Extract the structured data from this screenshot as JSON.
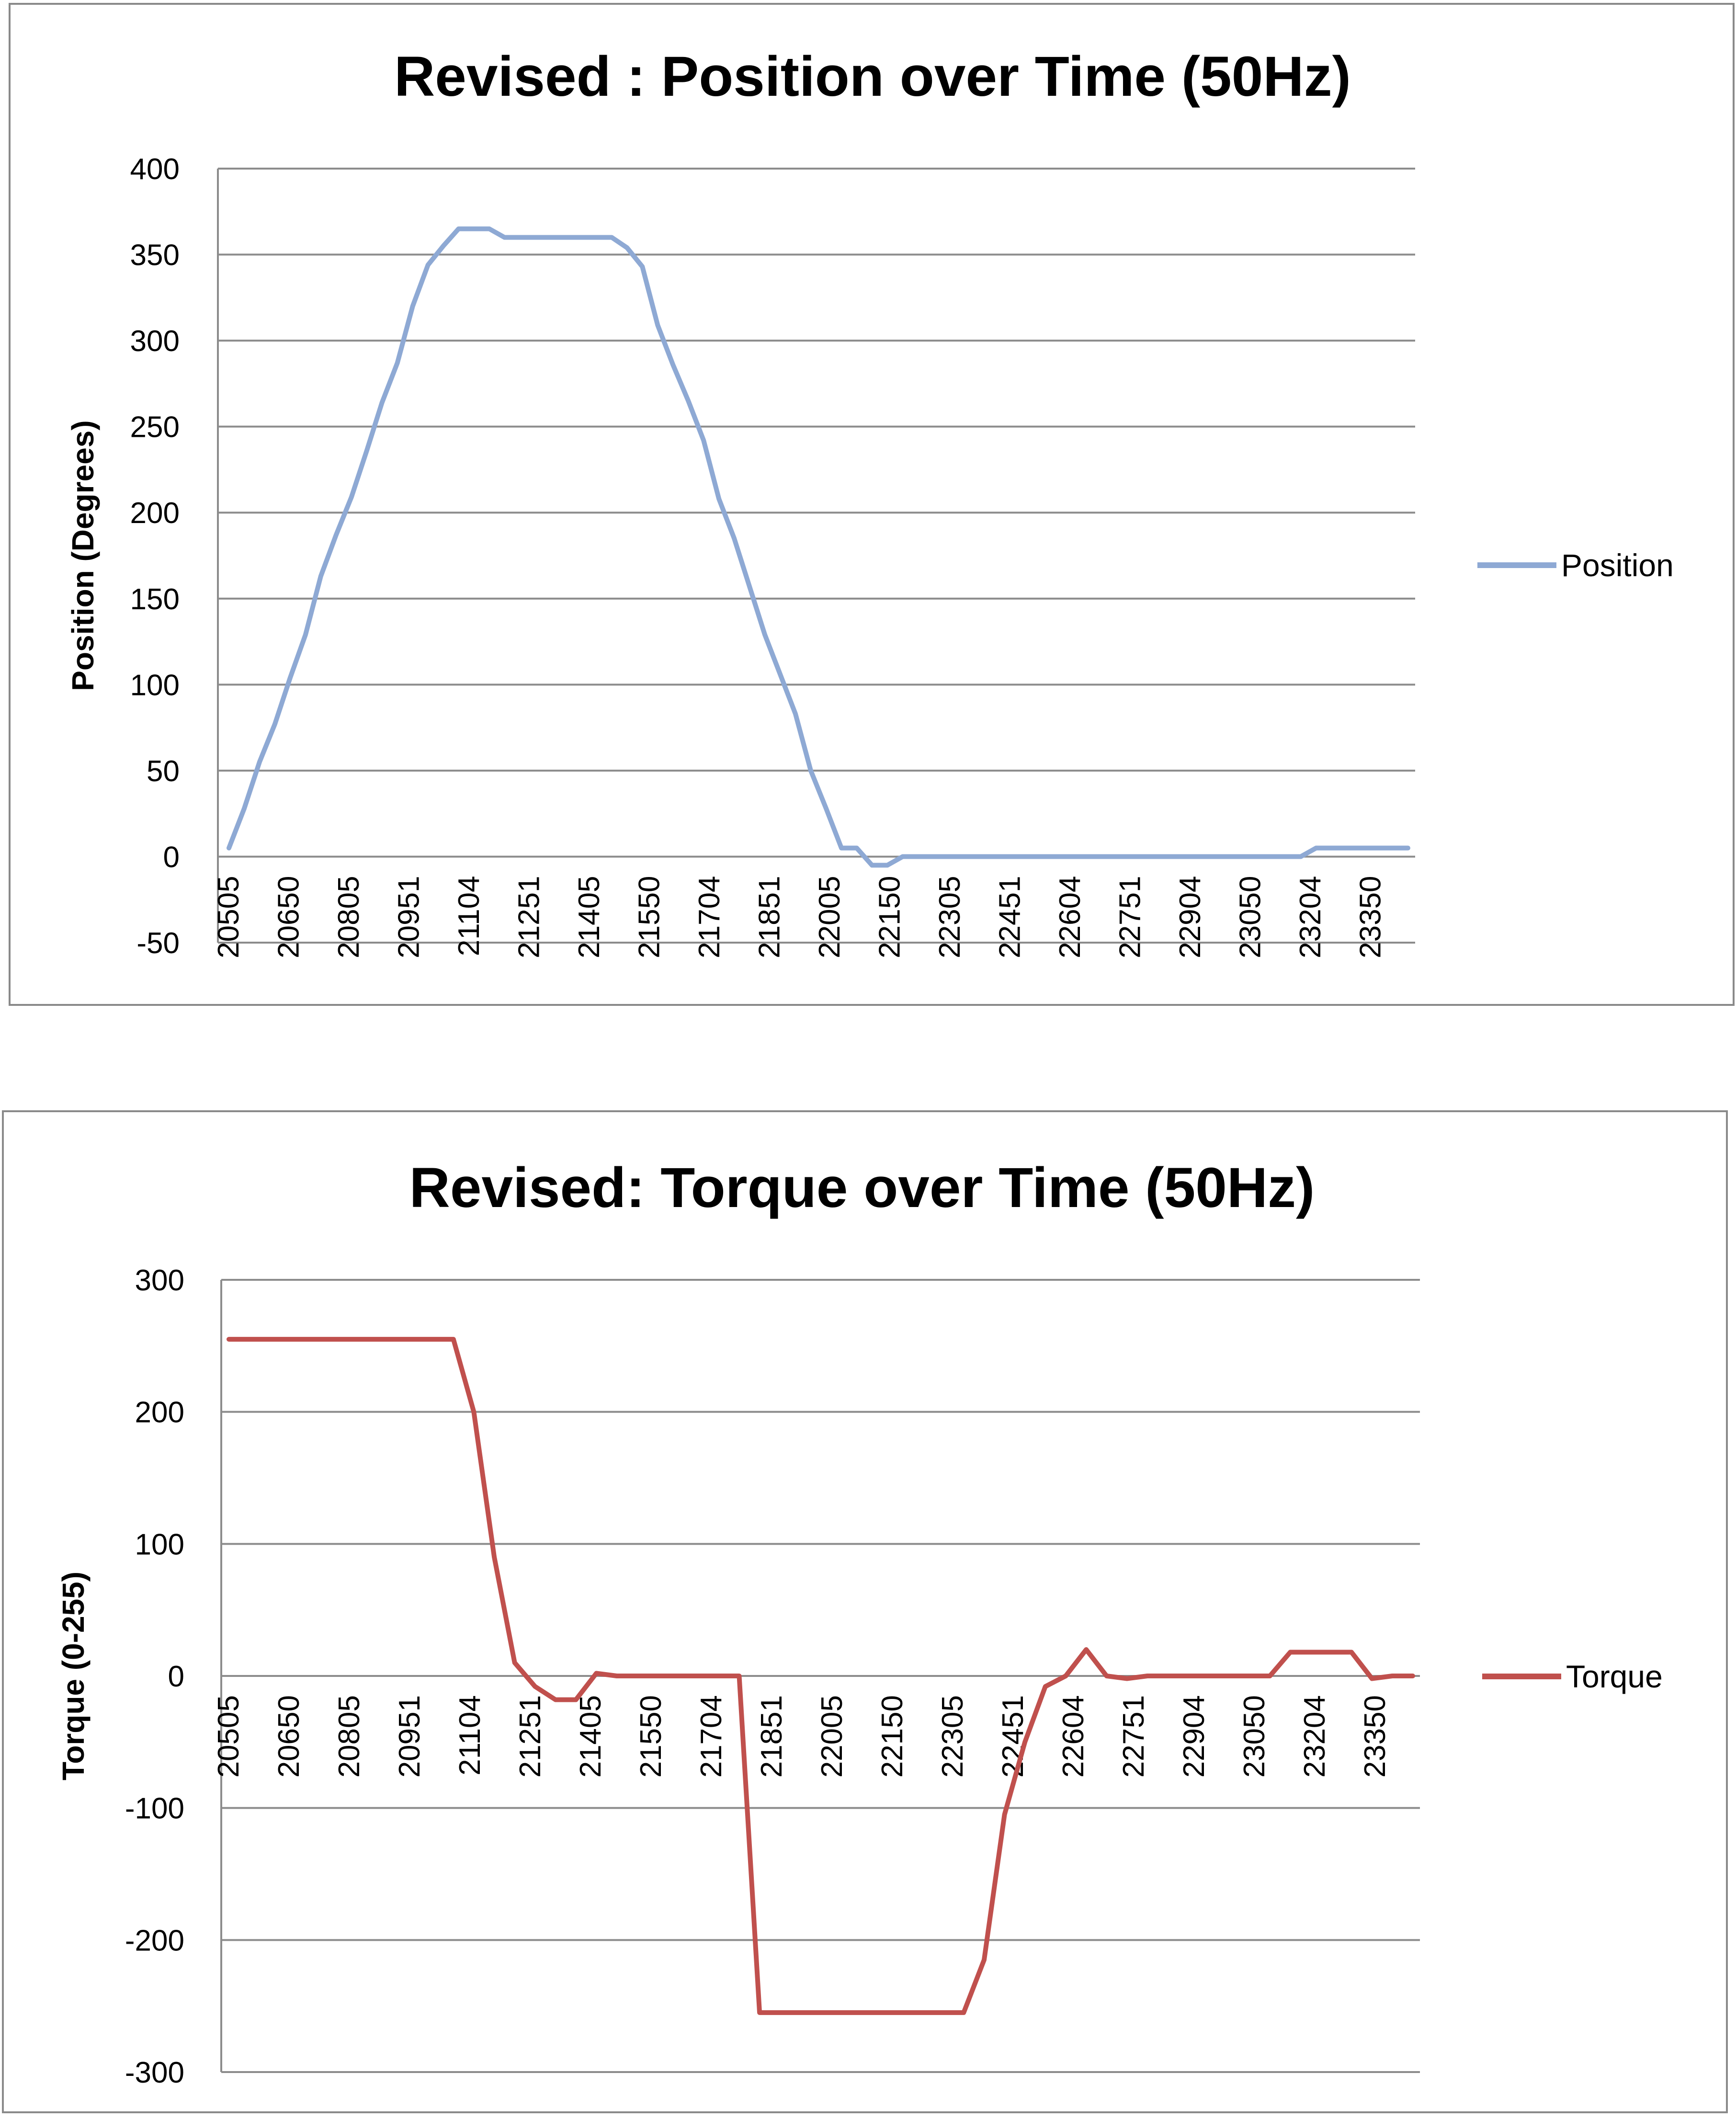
{
  "chart_data": [
    {
      "type": "line",
      "title": "Revised : Position over Time (50Hz)",
      "xlabel": "",
      "ylabel": "Position (Degrees)",
      "ylim": [
        -50,
        400
      ],
      "yticks": [
        -50,
        0,
        50,
        100,
        150,
        200,
        250,
        300,
        350,
        400
      ],
      "xtick_labels": [
        "20505",
        "20650",
        "20805",
        "20951",
        "21104",
        "21251",
        "21405",
        "21550",
        "21704",
        "21851",
        "22005",
        "22150",
        "22305",
        "22451",
        "22604",
        "22751",
        "22904",
        "23050",
        "23204",
        "23350"
      ],
      "grid": true,
      "legend_position": "right",
      "series": [
        {
          "name": "Position",
          "color": "#8EA9D4",
          "values": [
            5,
            28,
            55,
            77,
            104,
            129,
            163,
            187,
            209,
            236,
            264,
            287,
            320,
            344,
            355,
            365,
            365,
            365,
            360,
            360,
            360,
            360,
            360,
            360,
            360,
            360,
            354,
            343,
            309,
            286,
            265,
            242,
            208,
            185,
            157,
            129,
            106,
            83,
            50,
            28,
            5,
            5,
            -5,
            -5,
            0,
            0,
            0,
            0,
            0,
            0,
            0,
            0,
            0,
            0,
            0,
            0,
            0,
            0,
            0,
            0,
            0,
            0,
            0,
            0,
            0,
            0,
            0,
            0,
            0,
            0,
            0,
            5,
            5,
            5,
            5,
            5,
            5,
            5
          ]
        }
      ]
    },
    {
      "type": "line",
      "title": "Revised: Torque over Time (50Hz)",
      "xlabel": "",
      "ylabel": "Torque (0-255)",
      "ylim": [
        -300,
        300
      ],
      "yticks": [
        -300,
        -200,
        -100,
        0,
        100,
        200,
        300
      ],
      "xtick_labels": [
        "20505",
        "20650",
        "20805",
        "20951",
        "21104",
        "21251",
        "21405",
        "21550",
        "21704",
        "21851",
        "22005",
        "22150",
        "22305",
        "22451",
        "22604",
        "22751",
        "22904",
        "23050",
        "23204",
        "23350"
      ],
      "grid": true,
      "legend_position": "right",
      "series": [
        {
          "name": "Torque",
          "color": "#C0504D",
          "values": [
            255,
            255,
            255,
            255,
            255,
            255,
            255,
            255,
            255,
            255,
            255,
            255,
            200,
            90,
            10,
            -8,
            -18,
            -18,
            2,
            0,
            0,
            0,
            0,
            0,
            0,
            0,
            -255,
            -255,
            -255,
            -255,
            -255,
            -255,
            -255,
            -255,
            -255,
            -255,
            -255,
            -215,
            -105,
            -50,
            -8,
            0,
            20,
            0,
            -2,
            0,
            0,
            0,
            0,
            0,
            0,
            0,
            18,
            18,
            18,
            18,
            -2,
            0,
            0
          ]
        }
      ]
    }
  ]
}
